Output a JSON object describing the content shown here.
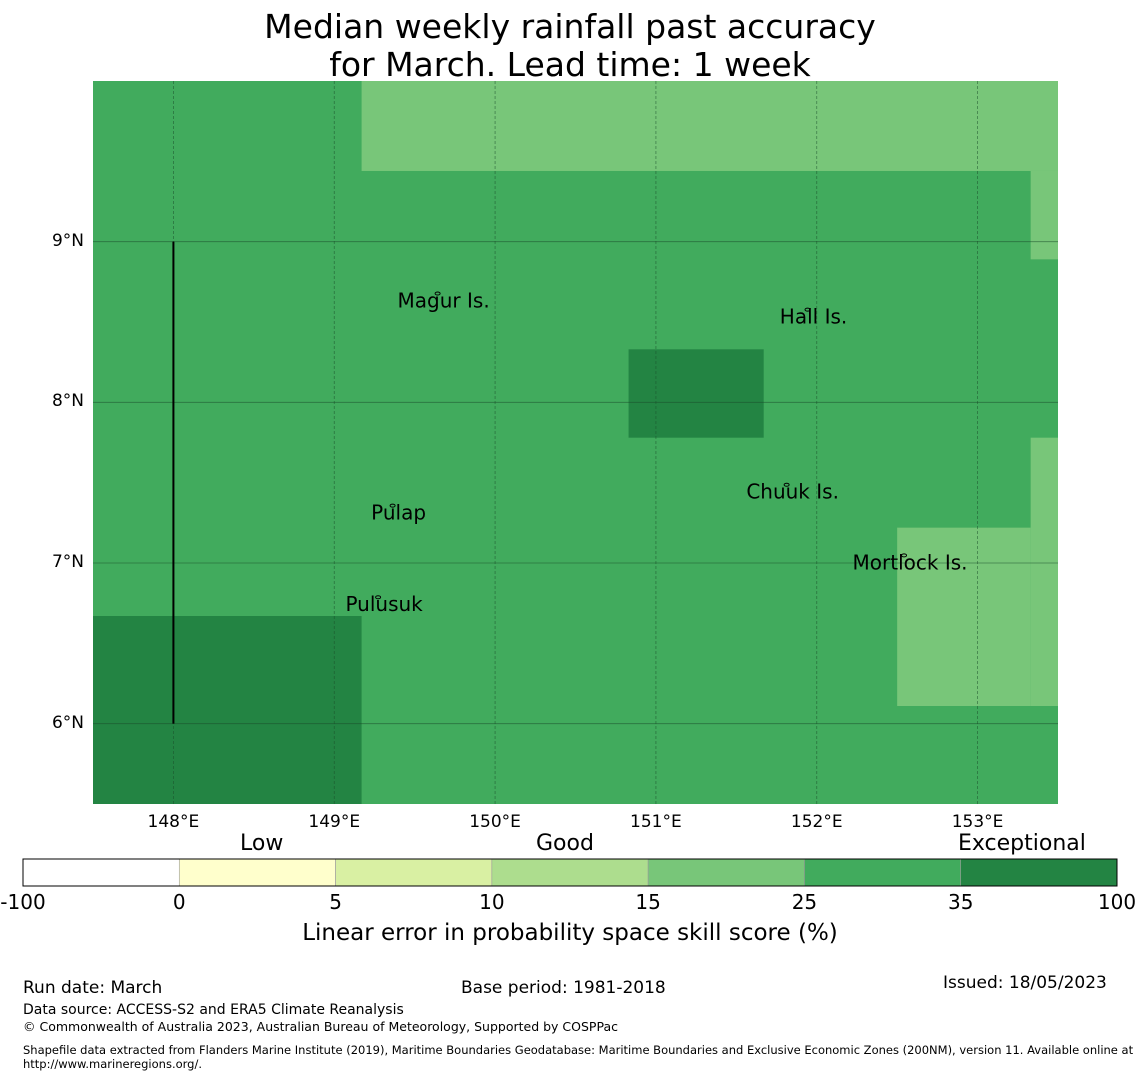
{
  "title": {
    "line1": "Median weekly rainfall past accuracy",
    "line2": "for March. Lead time: 1 week"
  },
  "map": {
    "lon_range": [
      147.5,
      153.5
    ],
    "lat_range": [
      5.5,
      10.0
    ],
    "lon_ticks": [
      148,
      149,
      150,
      151,
      152,
      153
    ],
    "lon_tick_labels": [
      "148°E",
      "149°E",
      "150°E",
      "151°E",
      "152°E",
      "153°E"
    ],
    "lat_ticks": [
      6,
      7,
      8,
      9
    ],
    "lat_tick_labels": [
      "6°N",
      "7°N",
      "8°N",
      "9°N"
    ],
    "base_category": "25-35",
    "regions": [
      {
        "category": "35-100",
        "lon": [
          147.5,
          149.17
        ],
        "lat": [
          5.5,
          6.67
        ]
      },
      {
        "category": "35-100",
        "lon": [
          150.83,
          151.67
        ],
        "lat": [
          7.78,
          8.33
        ]
      },
      {
        "category": "15-25",
        "lon": [
          149.17,
          153.5
        ],
        "lat": [
          9.44,
          10.0
        ]
      },
      {
        "category": "15-25",
        "lon": [
          153.33,
          153.5
        ],
        "lat": [
          8.89,
          9.44
        ]
      },
      {
        "category": "15-25",
        "lon": [
          153.33,
          153.5
        ],
        "lat": [
          6.11,
          7.78
        ]
      },
      {
        "category": "15-25",
        "lon": [
          152.5,
          153.33
        ],
        "lat": [
          6.11,
          7.22
        ]
      }
    ],
    "boundary_line": {
      "lon": 148.0,
      "lat": [
        6.0,
        9.0
      ]
    },
    "islands": [
      {
        "name": "Magur Is.",
        "lon": 149.68,
        "lat": 8.59
      },
      {
        "name": "Hall Is.",
        "lon": 151.98,
        "lat": 8.49
      },
      {
        "name": "Pulap",
        "lon": 149.4,
        "lat": 7.27
      },
      {
        "name": "Chuuk Is.",
        "lon": 151.85,
        "lat": 7.4
      },
      {
        "name": "Mortlock Is.",
        "lon": 152.58,
        "lat": 6.96
      },
      {
        "name": "Pulusuk",
        "lon": 149.31,
        "lat": 6.7
      }
    ]
  },
  "colorbar": {
    "category_labels": {
      "low": "Low",
      "good": "Good",
      "exceptional": "Exceptional"
    },
    "bins": [
      {
        "range": "-100-0",
        "color": "#ffffff"
      },
      {
        "range": "0-5",
        "color": "#ffffcc"
      },
      {
        "range": "5-10",
        "color": "#d9f0a3"
      },
      {
        "range": "10-15",
        "color": "#addd8e"
      },
      {
        "range": "15-25",
        "color": "#78c679"
      },
      {
        "range": "25-35",
        "color": "#41ab5d"
      },
      {
        "range": "35-100",
        "color": "#238443"
      }
    ],
    "ticks": [
      "-100",
      "0",
      "5",
      "10",
      "15",
      "25",
      "35",
      "100"
    ],
    "label": "Linear error in probability space skill score (%)"
  },
  "footer": {
    "run_date": "Run date: March",
    "base_period": "Base period: 1981-2018",
    "issued": "Issued: 18/05/2023",
    "data_source": "Data source: ACCESS-S2 and ERA5 Climate Reanalysis",
    "copyright": "© Commonwealth of Australia 2023, Australian Bureau of Meteorology, Supported by COSPPac",
    "shapefile": "Shapefile data extracted from Flanders Marine Institute (2019), Maritime Boundaries Geodatabase: Maritime Boundaries and Exclusive Economic Zones (200NM), version 11. Available online at http://www.marineregions.org/."
  }
}
